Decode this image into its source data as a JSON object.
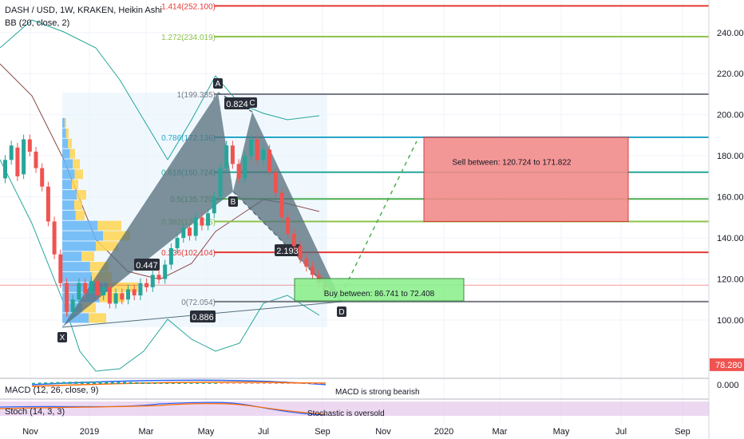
{
  "header": {
    "symbol_line": "DASH / USD, 1W, KRAKEN, Heikin Ashi",
    "bb_line": "BB (20, close, 2)"
  },
  "indicators": {
    "macd_label": "MACD (12, 26, close, 9)",
    "macd_note": "MACD is strong bearish",
    "stoch_label": "Stoch (14, 3, 3)",
    "stoch_note": "Stochastic is oversold"
  },
  "chart_data": {
    "type": "candlestick",
    "y_axis": {
      "ticks": [
        100,
        120,
        140,
        160,
        180,
        200,
        220,
        240
      ],
      "tick_labels": [
        "100.000",
        "120.000",
        "140.000",
        "160.000",
        "180.000",
        "200.000",
        "220.000",
        "240.000"
      ],
      "range": [
        70,
        256
      ]
    },
    "x_axis": {
      "labels": [
        "Nov",
        "2019",
        "Mar",
        "May",
        "Jul",
        "Sep",
        "Nov",
        "2020",
        "Mar",
        "May",
        "Jul",
        "Sep"
      ]
    },
    "last_price": {
      "value": 78.28,
      "label": "78.280"
    },
    "fib_levels": [
      {
        "ratio": "1.414",
        "price": 252.1,
        "label": "1.414(252.100)",
        "color": "#e53935"
      },
      {
        "ratio": "1.272",
        "price": 234.019,
        "label": "1.272(234.019)",
        "color": "#8bc34a"
      },
      {
        "ratio": "1",
        "price": 199.385,
        "label": "1(199.385)",
        "color": "#787b86"
      },
      {
        "ratio": "0.786",
        "price": 172.136,
        "label": "0.786(172.136)",
        "color": "#26a6c9"
      },
      {
        "ratio": "0.618",
        "price": 150.724,
        "label": "0.618(150.724)",
        "color": "#26a69a"
      },
      {
        "ratio": "0.5",
        "price": 135.72,
        "label": "0.5(135.720)",
        "color": "#4caf50"
      },
      {
        "ratio": "0.382",
        "price": 120.716,
        "label": "0.382(120.716)",
        "color": "#8bc34a"
      },
      {
        "ratio": "0.236",
        "price": 102.104,
        "label": "0.236(102.104)",
        "color": "#e53935"
      },
      {
        "ratio": "0",
        "price": 72.054,
        "label": "0(72.054)",
        "color": "#787b86"
      }
    ],
    "pattern_points": [
      {
        "name": "X",
        "date": "2018-12",
        "price": 99
      },
      {
        "name": "A",
        "date": "2019-05",
        "price": 210
      },
      {
        "name": "B",
        "date": "2019-06",
        "price": 163
      },
      {
        "name": "C",
        "date": "2019-07",
        "price": 202
      },
      {
        "name": "D",
        "date": "2019-09",
        "price": 109
      }
    ],
    "pattern_ratios": [
      "0.447",
      "0.824",
      "2.193",
      "0.886"
    ],
    "zones": [
      {
        "name": "sell",
        "label": "Sell between: 120.724 to 171.822",
        "from": 148,
        "to": 189,
        "color": "#f28b8b"
      },
      {
        "name": "buy",
        "label": "Buy between: 86.741 to 72.408",
        "from": 108,
        "to": 120,
        "color": "#8ef08e"
      }
    ],
    "candles": [
      {
        "o": 169,
        "c": 178
      },
      {
        "o": 178,
        "c": 185
      },
      {
        "o": 184,
        "c": 170
      },
      {
        "o": 171,
        "c": 188
      },
      {
        "o": 188,
        "c": 182
      },
      {
        "o": 182,
        "c": 174
      },
      {
        "o": 174,
        "c": 165
      },
      {
        "o": 165,
        "c": 148
      },
      {
        "o": 148,
        "c": 132
      },
      {
        "o": 132,
        "c": 118
      },
      {
        "o": 118,
        "c": 104
      },
      {
        "o": 104,
        "c": 110
      },
      {
        "o": 110,
        "c": 118
      },
      {
        "o": 118,
        "c": 113
      },
      {
        "o": 113,
        "c": 119
      },
      {
        "o": 119,
        "c": 112
      },
      {
        "o": 112,
        "c": 116
      },
      {
        "o": 116,
        "c": 108
      },
      {
        "o": 108,
        "c": 113
      },
      {
        "o": 113,
        "c": 110
      },
      {
        "o": 110,
        "c": 115
      },
      {
        "o": 115,
        "c": 112
      },
      {
        "o": 112,
        "c": 118
      },
      {
        "o": 118,
        "c": 116
      },
      {
        "o": 116,
        "c": 122
      },
      {
        "o": 122,
        "c": 120
      },
      {
        "o": 120,
        "c": 127
      },
      {
        "o": 127,
        "c": 135
      },
      {
        "o": 135,
        "c": 140
      },
      {
        "o": 140,
        "c": 145
      },
      {
        "o": 145,
        "c": 141
      },
      {
        "o": 141,
        "c": 150
      },
      {
        "o": 150,
        "c": 146
      },
      {
        "o": 146,
        "c": 152
      },
      {
        "o": 152,
        "c": 160
      },
      {
        "o": 160,
        "c": 174
      },
      {
        "o": 174,
        "c": 185
      },
      {
        "o": 185,
        "c": 176
      },
      {
        "o": 176,
        "c": 169
      },
      {
        "o": 169,
        "c": 180
      },
      {
        "o": 180,
        "c": 188
      },
      {
        "o": 188,
        "c": 178
      },
      {
        "o": 178,
        "c": 183
      },
      {
        "o": 183,
        "c": 172
      },
      {
        "o": 172,
        "c": 162
      },
      {
        "o": 162,
        "c": 150
      },
      {
        "o": 150,
        "c": 142
      },
      {
        "o": 142,
        "c": 136
      },
      {
        "o": 136,
        "c": 130
      },
      {
        "o": 130,
        "c": 126
      },
      {
        "o": 126,
        "c": 122
      },
      {
        "o": 122,
        "c": 118
      },
      {
        "o": 118,
        "c": 114
      }
    ],
    "volume_profile": [
      {
        "price": 101,
        "size": 0.55
      },
      {
        "price": 106,
        "size": 0.42
      },
      {
        "price": 111,
        "size": 0.78
      },
      {
        "price": 116,
        "size": 0.95
      },
      {
        "price": 121,
        "size": 0.62
      },
      {
        "price": 126,
        "size": 0.58
      },
      {
        "price": 131,
        "size": 0.4
      },
      {
        "price": 136,
        "size": 0.7
      },
      {
        "price": 141,
        "size": 0.85
      },
      {
        "price": 146,
        "size": 0.74
      },
      {
        "price": 151,
        "size": 0.28
      },
      {
        "price": 156,
        "size": 0.25
      },
      {
        "price": 161,
        "size": 0.3
      },
      {
        "price": 166,
        "size": 0.2
      },
      {
        "price": 171,
        "size": 0.26
      },
      {
        "price": 176,
        "size": 0.22
      },
      {
        "price": 181,
        "size": 0.16
      },
      {
        "price": 186,
        "size": 0.12
      },
      {
        "price": 191,
        "size": 0.08
      },
      {
        "price": 196,
        "size": 0.05
      }
    ]
  }
}
